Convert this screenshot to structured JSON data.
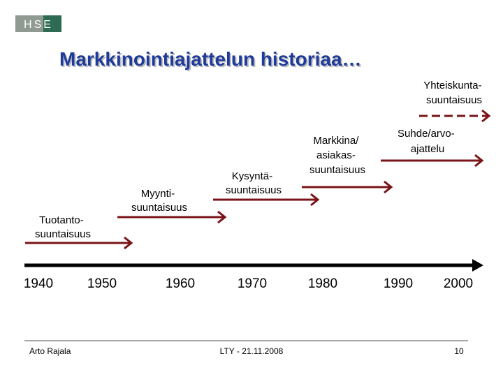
{
  "header": {
    "logo": "HSE",
    "title": "Markkinointiajattelun historiaa…"
  },
  "stages": [
    {
      "label": [
        "Tuotanto-",
        "suuntaisuus"
      ]
    },
    {
      "label": [
        "Myynti-",
        "suuntaisuus"
      ]
    },
    {
      "label": [
        "Kysyntä-",
        "suuntaisuus"
      ]
    },
    {
      "label": [
        "Markkina/",
        "asiakas-",
        "suuntaisuus"
      ]
    },
    {
      "label": [
        "Suhde/arvo-",
        "ajattelu"
      ]
    },
    {
      "label": [
        "Yhteiskunta-",
        "suuntaisuus"
      ]
    }
  ],
  "timeline": {
    "years": [
      "1940",
      "1950",
      "1960",
      "1970",
      "1980",
      "1990",
      "2000"
    ]
  },
  "footer": {
    "author": "Arto Rajala",
    "date": "LTY - 21.11.2008",
    "page": "10"
  }
}
